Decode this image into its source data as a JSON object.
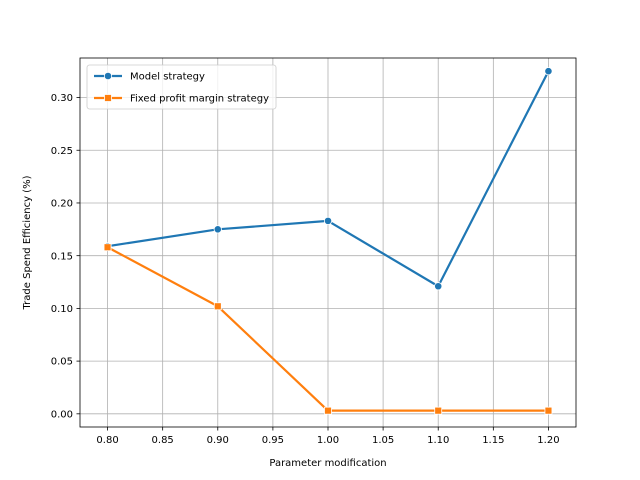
{
  "chart_data": {
    "type": "line",
    "xlabel": "Parameter modification",
    "ylabel": "Trade Spend Efficiency (%)",
    "xlim": [
      0.775,
      1.225
    ],
    "ylim": [
      -0.0125,
      0.3375
    ],
    "x_ticks": [
      0.8,
      0.85,
      0.9,
      0.95,
      1.0,
      1.05,
      1.1,
      1.15,
      1.2
    ],
    "x_tick_labels": [
      "0.80",
      "0.85",
      "0.90",
      "0.95",
      "1.00",
      "1.05",
      "1.10",
      "1.15",
      "1.20"
    ],
    "y_ticks": [
      0.0,
      0.05,
      0.1,
      0.15,
      0.2,
      0.25,
      0.3
    ],
    "y_tick_labels": [
      "0.00",
      "0.05",
      "0.10",
      "0.15",
      "0.20",
      "0.25",
      "0.30"
    ],
    "grid": true,
    "legend_position": "top-left",
    "series": [
      {
        "name": "Model strategy",
        "color": "#1f77b4",
        "marker": "circle",
        "x": [
          0.8,
          0.9,
          1.0,
          1.1,
          1.2
        ],
        "y": [
          0.159,
          0.175,
          0.183,
          0.121,
          0.325
        ]
      },
      {
        "name": "Fixed profit margin strategy",
        "color": "#ff7f0e",
        "marker": "square",
        "x": [
          0.8,
          0.9,
          1.0,
          1.1,
          1.2
        ],
        "y": [
          0.158,
          0.102,
          0.003,
          0.003,
          0.003
        ]
      }
    ]
  }
}
